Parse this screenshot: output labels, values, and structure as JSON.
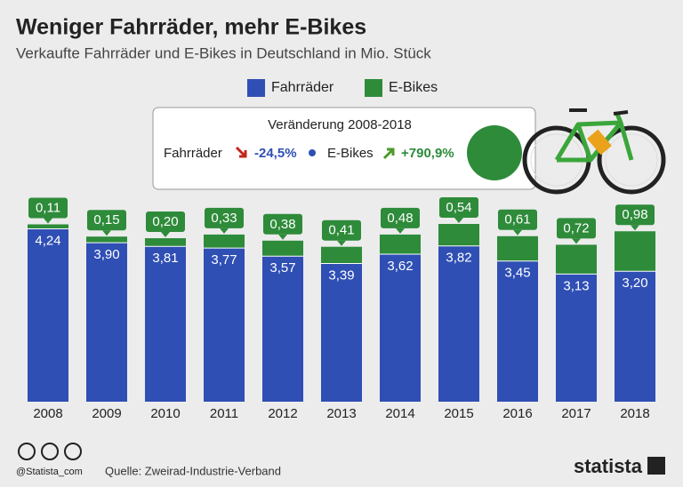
{
  "chart_data": {
    "type": "stacked-bar",
    "title": "Weniger Fahrräder, mehr E-Bikes",
    "subtitle": "Verkaufte Fahrräder und E-Bikes in Deutschland in Mio. Stück",
    "categories": [
      "2008",
      "2009",
      "2010",
      "2011",
      "2012",
      "2013",
      "2014",
      "2015",
      "2016",
      "2017",
      "2018"
    ],
    "series": [
      {
        "name": "Fahrräder",
        "color": "#2f4fb4",
        "values": [
          4.24,
          3.9,
          3.81,
          3.77,
          3.57,
          3.39,
          3.62,
          3.82,
          3.45,
          3.13,
          3.2
        ],
        "value_labels": [
          "4,24",
          "3,90",
          "3,81",
          "3,77",
          "3,57",
          "3,39",
          "3,62",
          "3,82",
          "3,45",
          "3,13",
          "3,20"
        ]
      },
      {
        "name": "E-Bikes",
        "color": "#2e8b3a",
        "values": [
          0.11,
          0.15,
          0.2,
          0.33,
          0.38,
          0.41,
          0.48,
          0.54,
          0.61,
          0.72,
          0.98
        ],
        "value_labels": [
          "0,11",
          "0,15",
          "0,20",
          "0,33",
          "0,38",
          "0,41",
          "0,48",
          "0,54",
          "0,61",
          "0,72",
          "0,98"
        ]
      }
    ],
    "change_box": {
      "title": "Veränderung 2008-2018",
      "items": [
        {
          "label": "Fahrräder",
          "change": "-24,5%"
        },
        {
          "label": "E-Bikes",
          "change": "+790,9%"
        }
      ]
    },
    "credit": "@Statista_com",
    "source": "Quelle: Zweirad-Industrie-Verband",
    "brand": "statista"
  }
}
